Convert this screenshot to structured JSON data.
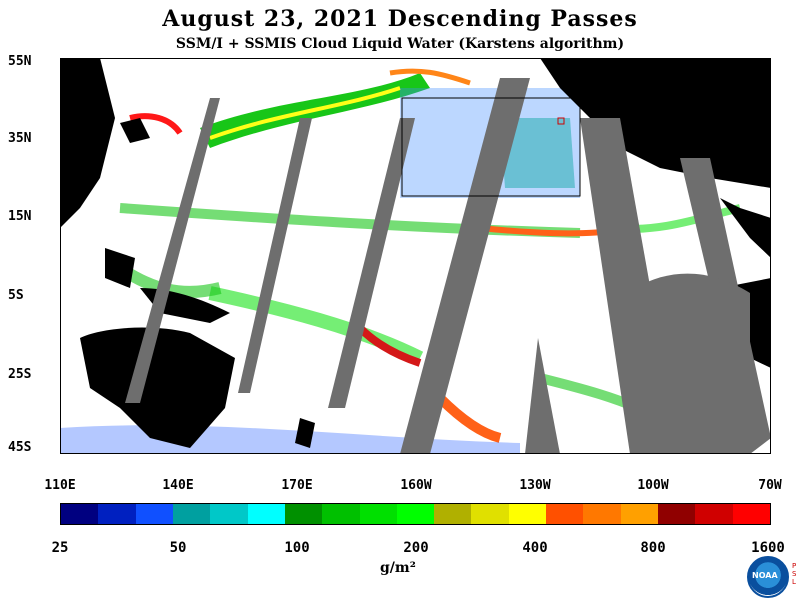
{
  "title": "August 23, 2021  Descending Passes",
  "subtitle": "SSM/I + SSMIS Cloud Liquid Water (Karstens algorithm)",
  "lat_labels": [
    "55N",
    "35N",
    "15N",
    "5S",
    "25S",
    "45S"
  ],
  "lon_labels": [
    "110E",
    "140E",
    "170E",
    "160W",
    "130W",
    "100W",
    "70W"
  ],
  "colorbar": {
    "colors": [
      "#000080",
      "#0020c0",
      "#1050ff",
      "#00a0a0",
      "#00c8c8",
      "#00ffff",
      "#009000",
      "#00c000",
      "#00e000",
      "#00ff00",
      "#b0b000",
      "#e0e000",
      "#ffff00",
      "#ff5000",
      "#ff7800",
      "#ffa000",
      "#900000",
      "#d00000",
      "#ff0000"
    ],
    "tick_labels": [
      "25",
      "50",
      "100",
      "200",
      "400",
      "800",
      "1600"
    ],
    "units": "g/m²"
  },
  "logo_text": "NOAA",
  "logo_side_text": "PSL"
}
